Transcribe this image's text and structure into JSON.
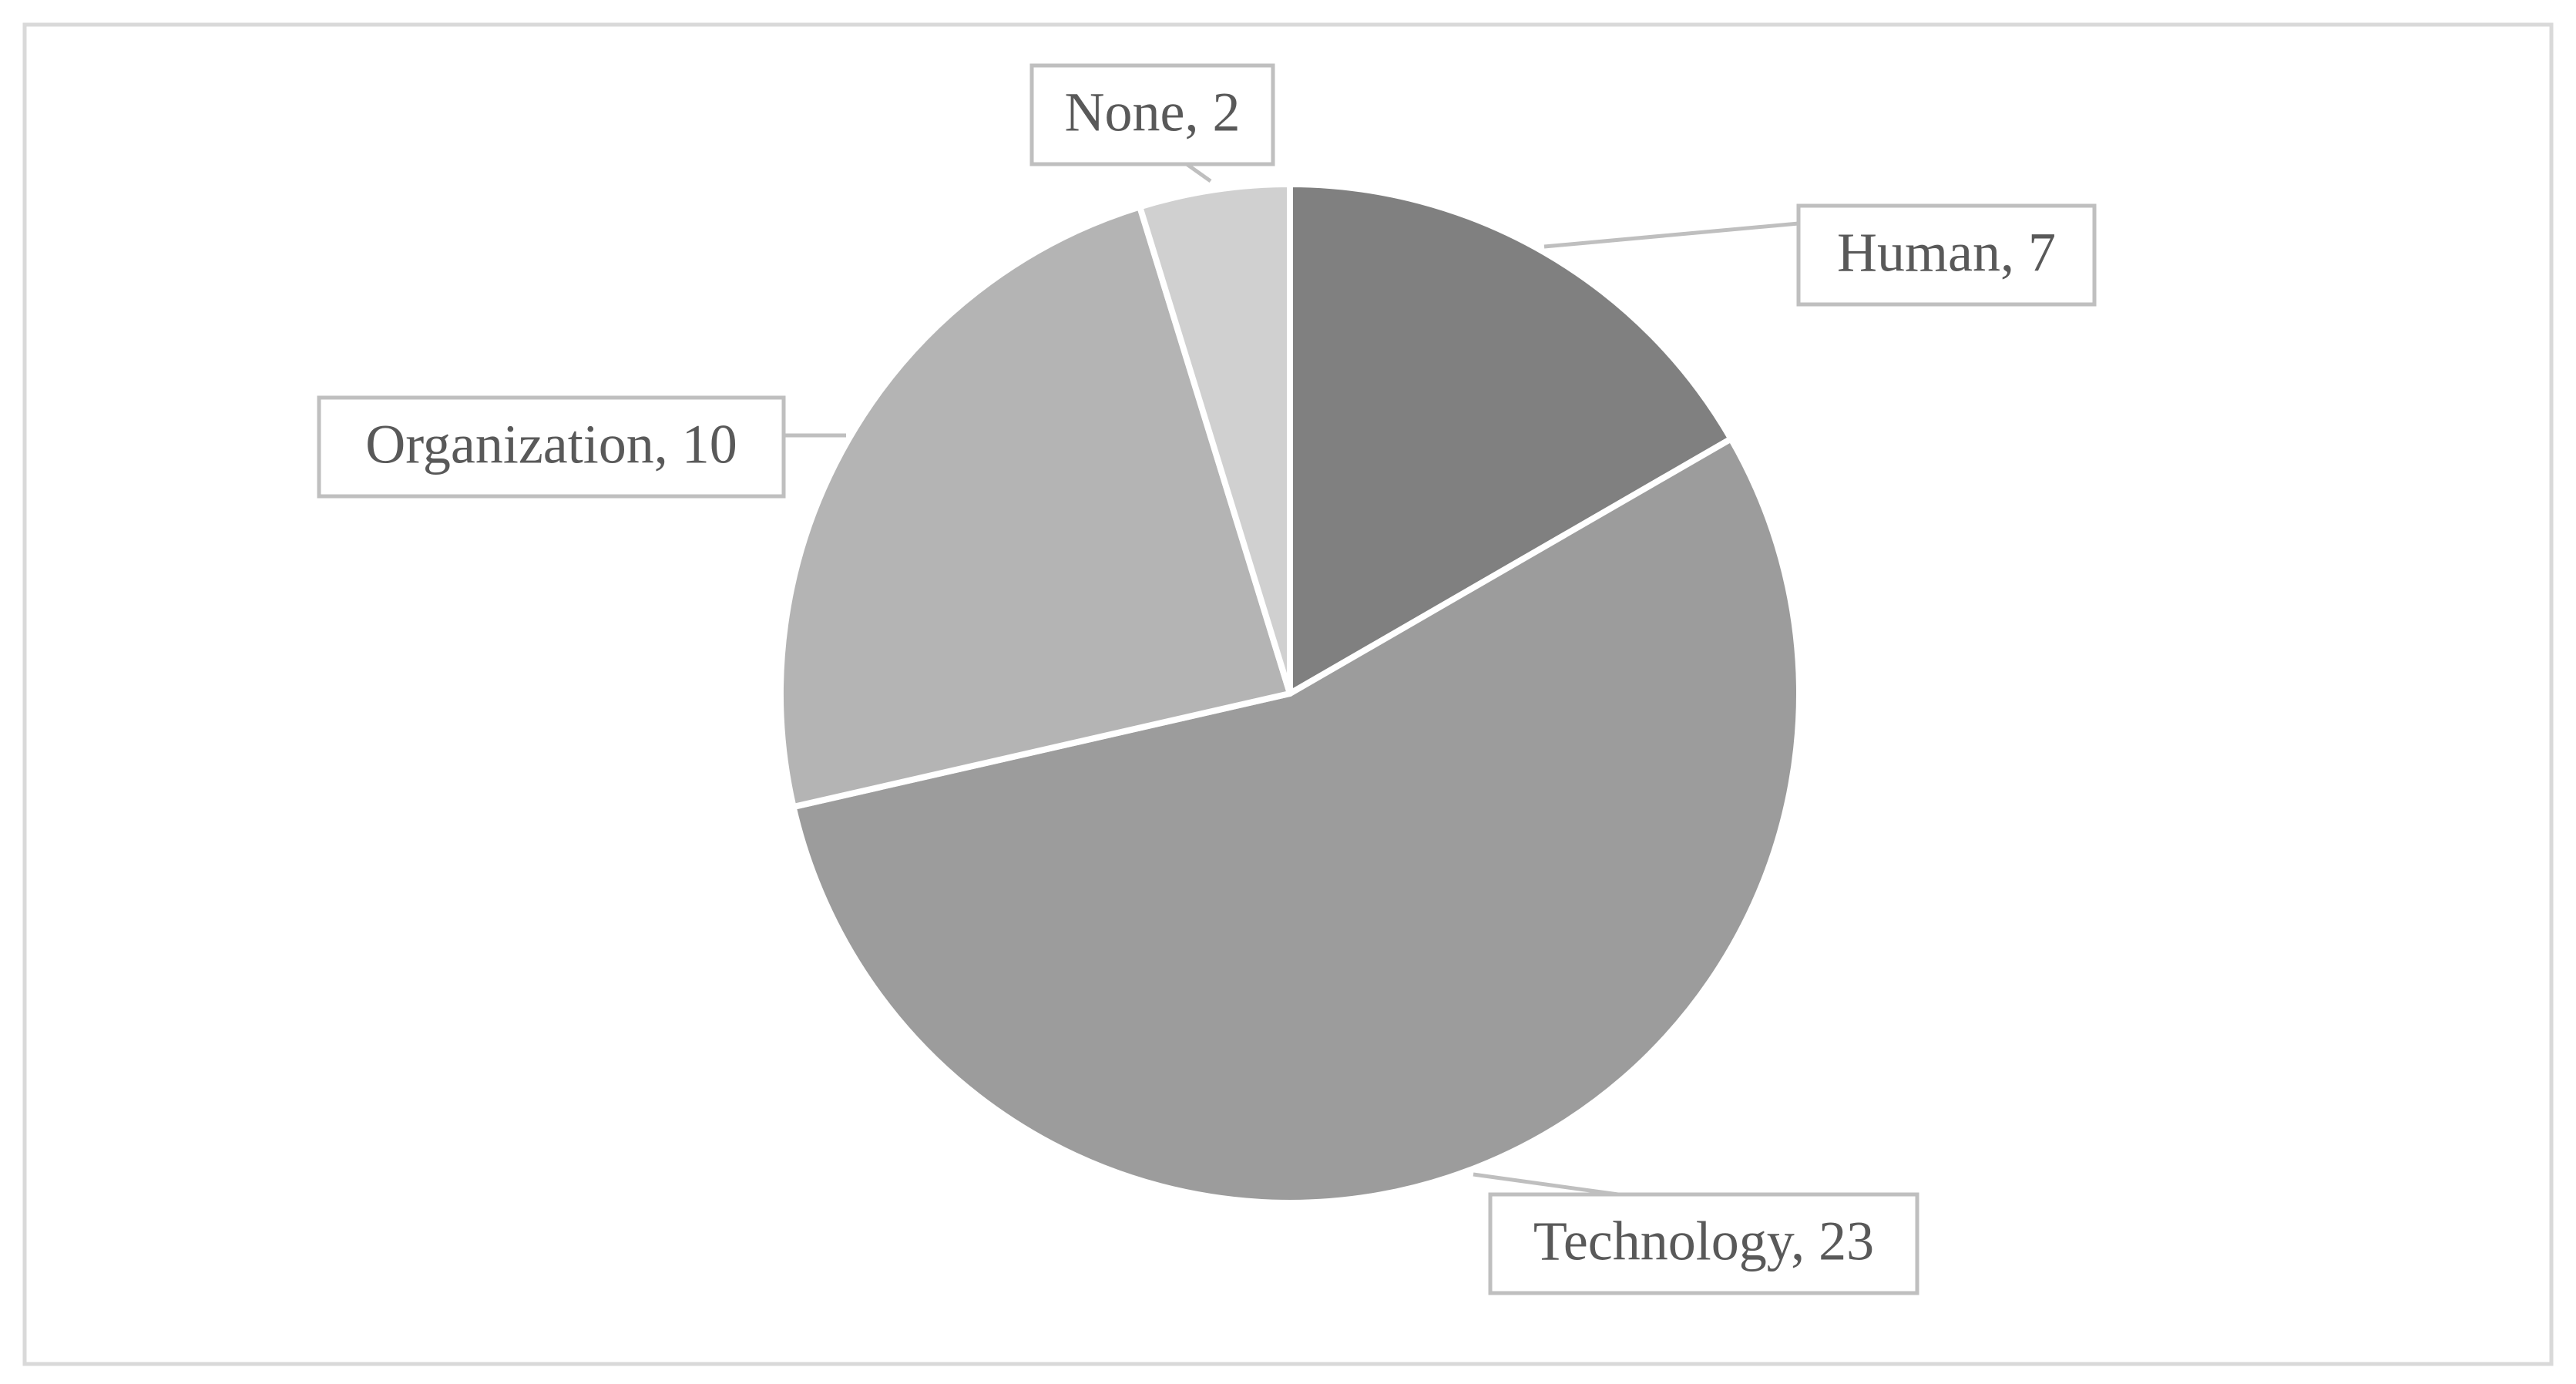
{
  "chart_data": {
    "type": "pie",
    "values": [
      7,
      23,
      10,
      2
    ],
    "value_labels": [
      "Human, 7",
      "Technology, 23",
      "Organization, 10",
      "None, 2"
    ],
    "colors": [
      "#808080",
      "#9c9c9c",
      "#b4b4b4",
      "#d0d0d0"
    ]
  }
}
